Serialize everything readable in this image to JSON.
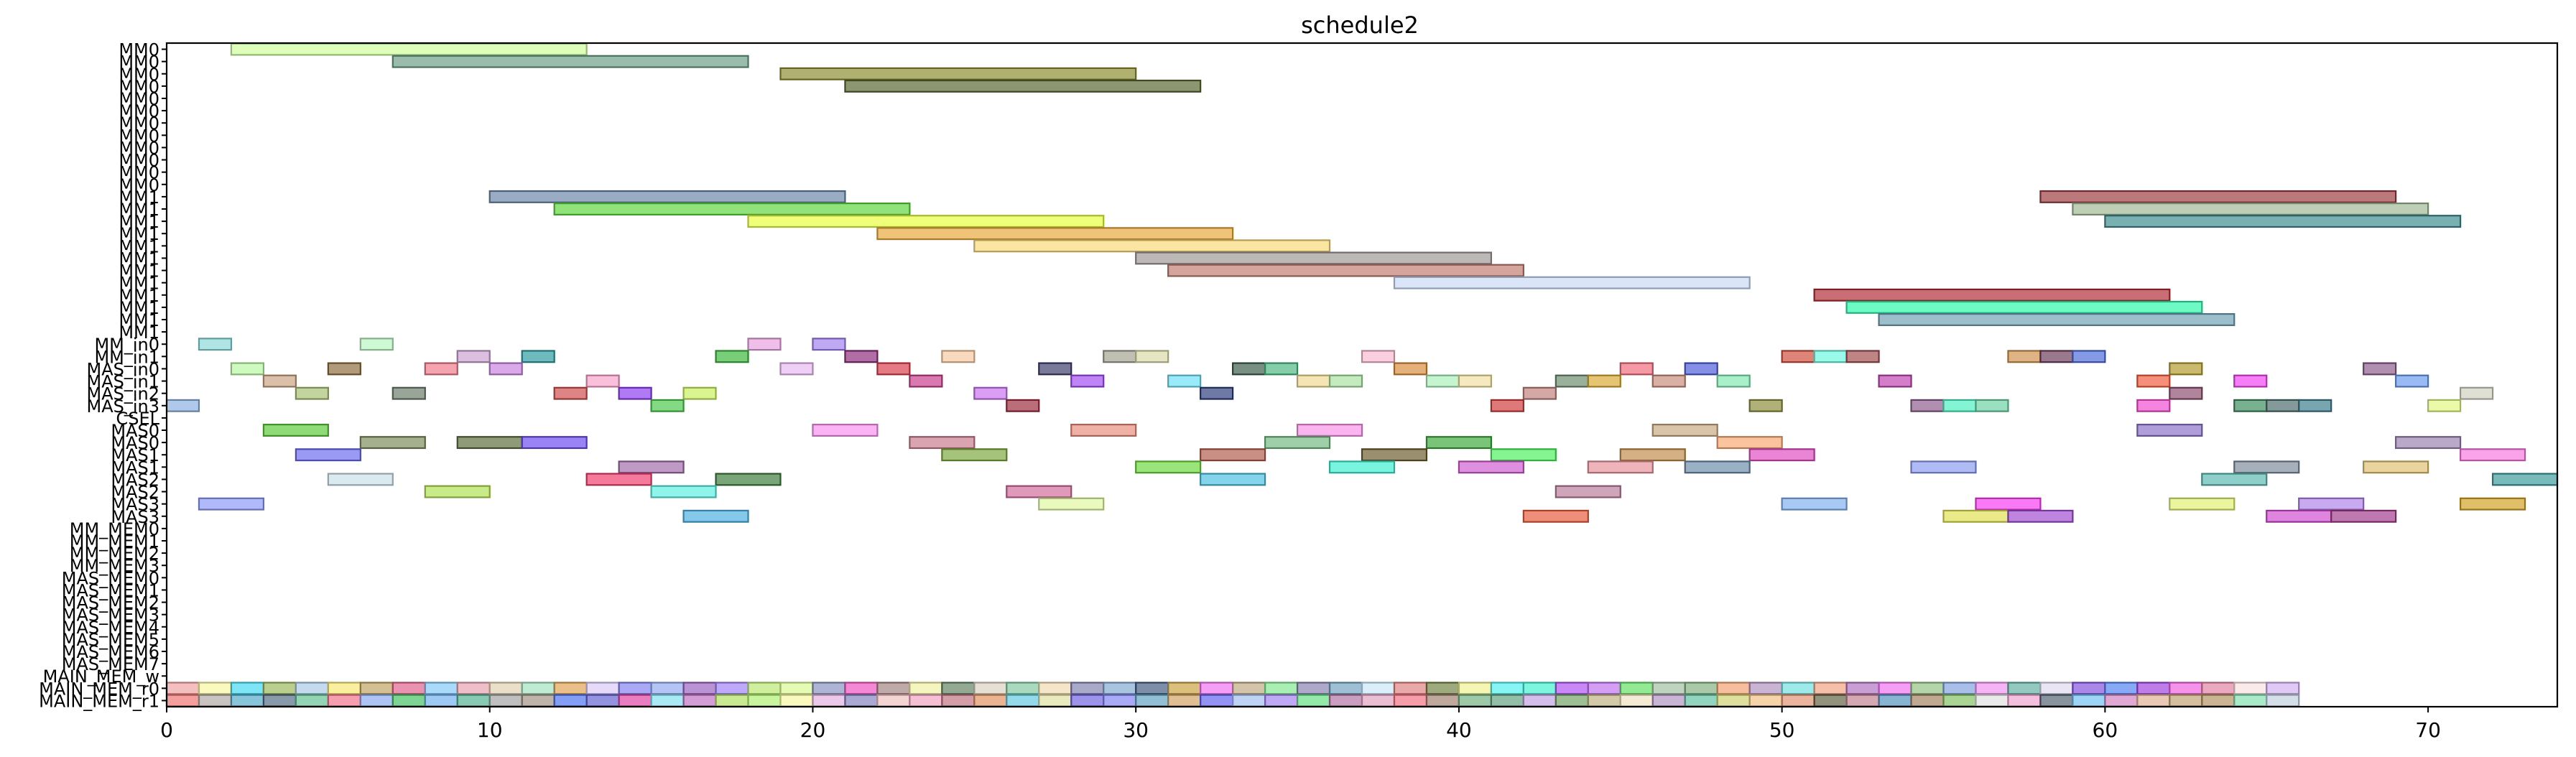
{
  "chart_data": {
    "type": "bar",
    "orientation": "horizontal-gantt",
    "title": "schedule2",
    "xlabel": "",
    "ylabel": "",
    "xlim": [
      0,
      74
    ],
    "xticks": [
      0,
      10,
      20,
      30,
      40,
      50,
      60,
      70
    ],
    "grid": false,
    "rows": [
      "MM0",
      "MM0",
      "MM0",
      "MM0",
      "MM0",
      "MM0",
      "MM0",
      "MM0",
      "MM0",
      "MM0",
      "MM0",
      "MM0",
      "MM1",
      "MM1",
      "MM1",
      "MM1",
      "MM1",
      "MM1",
      "MM1",
      "MM1",
      "MM1",
      "MM1",
      "MM1",
      "MM1",
      "MM_in0",
      "MM_in1",
      "MAS_in0",
      "MAS_in1",
      "MAS_in2",
      "MAS_in3",
      "CSEL",
      "MAS0",
      "MAS0",
      "MAS1",
      "MAS1",
      "MAS2",
      "MAS2",
      "MAS3",
      "MAS3",
      "MM_MEM0",
      "MM_MEM1",
      "MM_MEM2",
      "MM_MEM3",
      "MAS_MEM0",
      "MAS_MEM1",
      "MAS_MEM2",
      "MAS_MEM3",
      "MAS_MEM4",
      "MAS_MEM5",
      "MAS_MEM6",
      "MAS_MEM7",
      "MAIN_MEM_w",
      "MAIN_MEM_r0",
      "MAIN_MEM_r1"
    ],
    "bars": [
      {
        "row": 0,
        "start": 2,
        "end": 13,
        "color": "#cdff9a"
      },
      {
        "row": 1,
        "start": 7,
        "end": 18,
        "color": "#6a9c84"
      },
      {
        "row": 2,
        "start": 19,
        "end": 30,
        "color": "#8b8b2e"
      },
      {
        "row": 3,
        "start": 21,
        "end": 32,
        "color": "#56652e"
      },
      {
        "row": 12,
        "start": 10,
        "end": 21,
        "color": "#6a84a8"
      },
      {
        "row": 12,
        "start": 58,
        "end": 69,
        "color": "#9c3a3e"
      },
      {
        "row": 13,
        "start": 12,
        "end": 23,
        "color": "#5cd63c"
      },
      {
        "row": 13,
        "start": 59,
        "end": 70,
        "color": "#a0b894"
      },
      {
        "row": 14,
        "start": 18,
        "end": 29,
        "color": "#e8ff3a"
      },
      {
        "row": 14,
        "start": 60,
        "end": 71,
        "color": "#3a8a8c"
      },
      {
        "row": 15,
        "start": 22,
        "end": 33,
        "color": "#e8a83a"
      },
      {
        "row": 16,
        "start": 25,
        "end": 36,
        "color": "#f8d878"
      },
      {
        "row": 17,
        "start": 30,
        "end": 41,
        "color": "#9e9696"
      },
      {
        "row": 18,
        "start": 31,
        "end": 42,
        "color": "#c07a6e"
      },
      {
        "row": 19,
        "start": 38,
        "end": 49,
        "color": "#c8d8f4"
      },
      {
        "row": 20,
        "start": 51,
        "end": 62,
        "color": "#b02a34"
      },
      {
        "row": 21,
        "start": 52,
        "end": 63,
        "color": "#2af8a8"
      },
      {
        "row": 22,
        "start": 53,
        "end": 64,
        "color": "#6ea0b4"
      },
      {
        "row": 24,
        "start": 1,
        "end": 2,
        "color": "#8ad8d8"
      },
      {
        "row": 24,
        "start": 6,
        "end": 7,
        "color": "#b8f4c0"
      },
      {
        "row": 24,
        "start": 18,
        "end": 19,
        "color": "#e8a0e0"
      },
      {
        "row": 24,
        "start": 20,
        "end": 21,
        "color": "#a080f0"
      },
      {
        "row": 25,
        "start": 9,
        "end": 10,
        "color": "#c8a0d0"
      },
      {
        "row": 25,
        "start": 11,
        "end": 12,
        "color": "#2a9aa0"
      },
      {
        "row": 25,
        "start": 17,
        "end": 18,
        "color": "#3ab83a"
      },
      {
        "row": 25,
        "start": 21,
        "end": 22,
        "color": "#8a2a7a"
      },
      {
        "row": 25,
        "start": 24,
        "end": 25,
        "color": "#f8c8a0"
      },
      {
        "row": 25,
        "start": 29,
        "end": 30,
        "color": "#a0a090"
      },
      {
        "row": 25,
        "start": 30,
        "end": 31,
        "color": "#d8d8a8"
      },
      {
        "row": 25,
        "start": 37,
        "end": 38,
        "color": "#f8b8d0"
      },
      {
        "row": 25,
        "start": 50,
        "end": 51,
        "color": "#d04a3a"
      },
      {
        "row": 25,
        "start": 51,
        "end": 52,
        "color": "#6af8e0"
      },
      {
        "row": 25,
        "start": 52,
        "end": 53,
        "color": "#a04a4a"
      },
      {
        "row": 25,
        "start": 57,
        "end": 58,
        "color": "#d0904a"
      },
      {
        "row": 25,
        "start": 58,
        "end": 59,
        "color": "#6a3a5a"
      },
      {
        "row": 25,
        "start": 59,
        "end": 60,
        "color": "#4a6ad8"
      },
      {
        "row": 26,
        "start": 2,
        "end": 3,
        "color": "#b8f8a0"
      },
      {
        "row": 26,
        "start": 5,
        "end": 6,
        "color": "#8a6a3a"
      },
      {
        "row": 26,
        "start": 8,
        "end": 9,
        "color": "#f07888"
      },
      {
        "row": 26,
        "start": 10,
        "end": 11,
        "color": "#c880e0"
      },
      {
        "row": 26,
        "start": 19,
        "end": 20,
        "color": "#e8b8f0"
      },
      {
        "row": 26,
        "start": 22,
        "end": 23,
        "color": "#d83a4a"
      },
      {
        "row": 26,
        "start": 27,
        "end": 28,
        "color": "#3a3a6a"
      },
      {
        "row": 26,
        "start": 33,
        "end": 34,
        "color": "#3a5a4a"
      },
      {
        "row": 26,
        "start": 34,
        "end": 35,
        "color": "#4ab880"
      },
      {
        "row": 26,
        "start": 38,
        "end": 39,
        "color": "#d88a3a"
      },
      {
        "row": 26,
        "start": 45,
        "end": 46,
        "color": "#f06a7a"
      },
      {
        "row": 26,
        "start": 47,
        "end": 48,
        "color": "#4a5ad8"
      },
      {
        "row": 26,
        "start": 62,
        "end": 63,
        "color": "#b09a2a"
      },
      {
        "row": 26,
        "start": 68,
        "end": 69,
        "color": "#8a5a8a"
      },
      {
        "row": 27,
        "start": 3,
        "end": 4,
        "color": "#c8a080"
      },
      {
        "row": 27,
        "start": 13,
        "end": 14,
        "color": "#f8a0c8"
      },
      {
        "row": 27,
        "start": 23,
        "end": 24,
        "color": "#c83a8a"
      },
      {
        "row": 27,
        "start": 28,
        "end": 29,
        "color": "#a04af0"
      },
      {
        "row": 27,
        "start": 31,
        "end": 32,
        "color": "#6ae0f8"
      },
      {
        "row": 27,
        "start": 35,
        "end": 36,
        "color": "#f0d890"
      },
      {
        "row": 27,
        "start": 36,
        "end": 37,
        "color": "#a8e0a0"
      },
      {
        "row": 27,
        "start": 39,
        "end": 40,
        "color": "#a8f0b8"
      },
      {
        "row": 27,
        "start": 40,
        "end": 41,
        "color": "#f0e0a0"
      },
      {
        "row": 27,
        "start": 43,
        "end": 44,
        "color": "#6a8a6a"
      },
      {
        "row": 27,
        "start": 44,
        "end": 45,
        "color": "#d8a830"
      },
      {
        "row": 27,
        "start": 46,
        "end": 47,
        "color": "#c88a7a"
      },
      {
        "row": 27,
        "start": 48,
        "end": 49,
        "color": "#80e8b0"
      },
      {
        "row": 27,
        "start": 53,
        "end": 54,
        "color": "#c040b0"
      },
      {
        "row": 27,
        "start": 61,
        "end": 62,
        "color": "#f05a3a"
      },
      {
        "row": 27,
        "start": 64,
        "end": 65,
        "color": "#f040f0"
      },
      {
        "row": 27,
        "start": 69,
        "end": 70,
        "color": "#6a9af0"
      },
      {
        "row": 28,
        "start": 4,
        "end": 5,
        "color": "#a8c070"
      },
      {
        "row": 28,
        "start": 7,
        "end": 8,
        "color": "#6a7a6a"
      },
      {
        "row": 28,
        "start": 12,
        "end": 13,
        "color": "#d04a4a"
      },
      {
        "row": 28,
        "start": 14,
        "end": 15,
        "color": "#8a3af0"
      },
      {
        "row": 28,
        "start": 16,
        "end": 17,
        "color": "#c8f05a"
      },
      {
        "row": 28,
        "start": 25,
        "end": 26,
        "color": "#c870f0"
      },
      {
        "row": 28,
        "start": 32,
        "end": 33,
        "color": "#2a3a7a"
      },
      {
        "row": 28,
        "start": 42,
        "end": 43,
        "color": "#c0807a"
      },
      {
        "row": 28,
        "start": 62,
        "end": 63,
        "color": "#8a4a6a"
      },
      {
        "row": 28,
        "start": 71,
        "end": 72,
        "color": "#d0d0c0"
      },
      {
        "row": 29,
        "start": 0,
        "end": 1,
        "color": "#8ab0e0"
      },
      {
        "row": 29,
        "start": 15,
        "end": 16,
        "color": "#4ac84a"
      },
      {
        "row": 29,
        "start": 26,
        "end": 27,
        "color": "#9a2a3a"
      },
      {
        "row": 29,
        "start": 41,
        "end": 42,
        "color": "#d03a3a"
      },
      {
        "row": 29,
        "start": 49,
        "end": 50,
        "color": "#8a8a3a"
      },
      {
        "row": 29,
        "start": 54,
        "end": 55,
        "color": "#8a5a8a"
      },
      {
        "row": 29,
        "start": 55,
        "end": 56,
        "color": "#4af0c0"
      },
      {
        "row": 29,
        "start": 56,
        "end": 57,
        "color": "#6ad0a0"
      },
      {
        "row": 29,
        "start": 61,
        "end": 62,
        "color": "#f04ad0"
      },
      {
        "row": 29,
        "start": 64,
        "end": 65,
        "color": "#3a8a5a"
      },
      {
        "row": 29,
        "start": 65,
        "end": 66,
        "color": "#4a6a6a"
      },
      {
        "row": 29,
        "start": 66,
        "end": 67,
        "color": "#3a7a8a"
      },
      {
        "row": 29,
        "start": 70,
        "end": 71,
        "color": "#e0f880"
      },
      {
        "row": 31,
        "start": 3,
        "end": 5,
        "color": "#5ac83a"
      },
      {
        "row": 31,
        "start": 20,
        "end": 22,
        "color": "#f890f0"
      },
      {
        "row": 31,
        "start": 28,
        "end": 30,
        "color": "#e88a7a"
      },
      {
        "row": 31,
        "start": 35,
        "end": 37,
        "color": "#f890e8"
      },
      {
        "row": 31,
        "start": 46,
        "end": 48,
        "color": "#c8a880"
      },
      {
        "row": 31,
        "start": 61,
        "end": 63,
        "color": "#8a70c8"
      },
      {
        "row": 32,
        "start": 6,
        "end": 8,
        "color": "#7a8a5a"
      },
      {
        "row": 32,
        "start": 9,
        "end": 11,
        "color": "#5a6a3a"
      },
      {
        "row": 32,
        "start": 11,
        "end": 13,
        "color": "#6a4af0"
      },
      {
        "row": 32,
        "start": 23,
        "end": 25,
        "color": "#c87a8a"
      },
      {
        "row": 32,
        "start": 34,
        "end": 36,
        "color": "#70b880"
      },
      {
        "row": 32,
        "start": 39,
        "end": 41,
        "color": "#3aa83a"
      },
      {
        "row": 32,
        "start": 48,
        "end": 50,
        "color": "#f8a870"
      },
      {
        "row": 32,
        "start": 69,
        "end": 71,
        "color": "#9a80b0"
      },
      {
        "row": 33,
        "start": 4,
        "end": 6,
        "color": "#6a6af0"
      },
      {
        "row": 33,
        "start": 24,
        "end": 26,
        "color": "#7aa83a"
      },
      {
        "row": 33,
        "start": 32,
        "end": 34,
        "color": "#b05a4a"
      },
      {
        "row": 33,
        "start": 37,
        "end": 39,
        "color": "#6a5a2a"
      },
      {
        "row": 33,
        "start": 41,
        "end": 43,
        "color": "#4af05a"
      },
      {
        "row": 33,
        "start": 45,
        "end": 47,
        "color": "#c08a4a"
      },
      {
        "row": 33,
        "start": 49,
        "end": 51,
        "color": "#e04ac0"
      },
      {
        "row": 33,
        "start": 71,
        "end": 73,
        "color": "#f878e0"
      },
      {
        "row": 34,
        "start": 14,
        "end": 16,
        "color": "#a06aa8"
      },
      {
        "row": 34,
        "start": 30,
        "end": 32,
        "color": "#6ad83a"
      },
      {
        "row": 34,
        "start": 36,
        "end": 38,
        "color": "#3af0d0"
      },
      {
        "row": 34,
        "start": 40,
        "end": 42,
        "color": "#d05ad0"
      },
      {
        "row": 34,
        "start": 44,
        "end": 46,
        "color": "#e8909a"
      },
      {
        "row": 34,
        "start": 47,
        "end": 49,
        "color": "#6a8aa8"
      },
      {
        "row": 34,
        "start": 54,
        "end": 56,
        "color": "#8a9af0"
      },
      {
        "row": 34,
        "start": 64,
        "end": 66,
        "color": "#7a8a9a"
      },
      {
        "row": 34,
        "start": 68,
        "end": 70,
        "color": "#e0c070"
      },
      {
        "row": 35,
        "start": 5,
        "end": 7,
        "color": "#c8e0e8"
      },
      {
        "row": 35,
        "start": 13,
        "end": 15,
        "color": "#f03a6a"
      },
      {
        "row": 35,
        "start": 17,
        "end": 19,
        "color": "#3a7a3a"
      },
      {
        "row": 35,
        "start": 32,
        "end": 34,
        "color": "#4ac0e0"
      },
      {
        "row": 35,
        "start": 63,
        "end": 65,
        "color": "#5ab8b0"
      },
      {
        "row": 35,
        "start": 72,
        "end": 74,
        "color": "#3a9a9a"
      },
      {
        "row": 36,
        "start": 8,
        "end": 10,
        "color": "#b0e050"
      },
      {
        "row": 36,
        "start": 15,
        "end": 17,
        "color": "#5af0e0"
      },
      {
        "row": 36,
        "start": 26,
        "end": 28,
        "color": "#d06a9a"
      },
      {
        "row": 36,
        "start": 43,
        "end": 45,
        "color": "#b87a9a"
      },
      {
        "row": 37,
        "start": 1,
        "end": 3,
        "color": "#8a9af8"
      },
      {
        "row": 37,
        "start": 27,
        "end": 29,
        "color": "#e0f8a0"
      },
      {
        "row": 37,
        "start": 50,
        "end": 52,
        "color": "#80b0f0"
      },
      {
        "row": 37,
        "start": 56,
        "end": 58,
        "color": "#f83af0"
      },
      {
        "row": 37,
        "start": 62,
        "end": 64,
        "color": "#e0f070"
      },
      {
        "row": 37,
        "start": 66,
        "end": 68,
        "color": "#b080e8"
      },
      {
        "row": 37,
        "start": 71,
        "end": 73,
        "color": "#d0a020"
      },
      {
        "row": 38,
        "start": 16,
        "end": 18,
        "color": "#4ab0e0"
      },
      {
        "row": 38,
        "start": 42,
        "end": 44,
        "color": "#e85a3a"
      },
      {
        "row": 38,
        "start": 55,
        "end": 57,
        "color": "#e0e050"
      },
      {
        "row": 38,
        "start": 57,
        "end": 59,
        "color": "#a04ad0"
      },
      {
        "row": 38,
        "start": 65,
        "end": 67,
        "color": "#d04ad0"
      },
      {
        "row": 38,
        "start": 67,
        "end": 69,
        "color": "#a03a8a"
      }
    ],
    "row_colors_r0": [
      "#f0a0a0",
      "#f8f8a0",
      "#40d8f0",
      "#9ab85a",
      "#a8c8e8",
      "#f8e870",
      "#c0a060",
      "#e0608a",
      "#80c8f8",
      "#e8a0b0",
      "#e0d0b0",
      "#a0e0c0",
      "#e0a050",
      "#d8c8f8",
      "#8080f0",
      "#90a8f0",
      "#9a60c0",
      "#a080f8",
      "#b8e870",
      "#d8f890",
      "#8890c0",
      "#f050c0",
      "#a08080",
      "#f0f0a0",
      "#608060",
      "#d8d0c0",
      "#80c8a0",
      "#f0d8b0",
      "#8080b0",
      "#80a8d0",
      "#405880",
      "#c8a040",
      "#f070f0",
      "#c0a880",
      "#80e890",
      "#8880b0",
      "#70a0c0",
      "#c8e8f8",
      "#e08080",
      "#708040",
      "#f0f090",
      "#50f0f0",
      "#40f0d0",
      "#b050f0",
      "#c070f0",
      "#60e060",
      "#a0c0a0",
      "#80b080",
      "#f0a070",
      "#b090c0",
      "#70e0e0",
      "#f0a080",
      "#b070c0",
      "#f070f0",
      "#90c080",
      "#80a0e0",
      "#f090f0",
      "#60b0a0",
      "#e0d8f0",
      "#8050e0",
      "#5080f0",
      "#a040e0",
      "#f060e0",
      "#e080a0",
      "#f8e0e0",
      "#d0b0f0"
    ],
    "row_colors_r1": [
      "#f07070",
      "#b0a8a0",
      "#50a8c8",
      "#506880",
      "#60c090",
      "#f0708a",
      "#88a8f0",
      "#40c060",
      "#70b0f0",
      "#50b090",
      "#a0a0a0",
      "#a09080",
      "#4a70f0",
      "#6060d0",
      "#e040a0",
      "#80e0f0",
      "#c070c0",
      "#b0e060",
      "#b0f070",
      "#f8f8a0",
      "#e0b0e0",
      "#8080c0",
      "#f0c0c0",
      "#f0a0c0",
      "#c07080",
      "#e09060",
      "#60c8e0",
      "#e0e0a0",
      "#7060e0",
      "#8080f0",
      "#60a0c0",
      "#d0a060",
      "#6060f0",
      "#a0c0f0",
      "#a080f0",
      "#60e080",
      "#b070a0",
      "#e0a0c0",
      "#f07080",
      "#a08070",
      "#70b080",
      "#60a080",
      "#c0a0e0",
      "#70a060",
      "#c0b080",
      "#f0e0c0",
      "#b090c0",
      "#60c0a0",
      "#d0d070",
      "#f0c080",
      "#e09070",
      "#606040",
      "#c08090",
      "#5090c0",
      "#a08060",
      "#80c060",
      "#e0e0e0",
      "#f0a0d0",
      "#506070",
      "#70c0f0",
      "#d080c0",
      "#e0b090",
      "#c0a070",
      "#b09060",
      "#80e0b0",
      "#c0d0e0"
    ]
  }
}
